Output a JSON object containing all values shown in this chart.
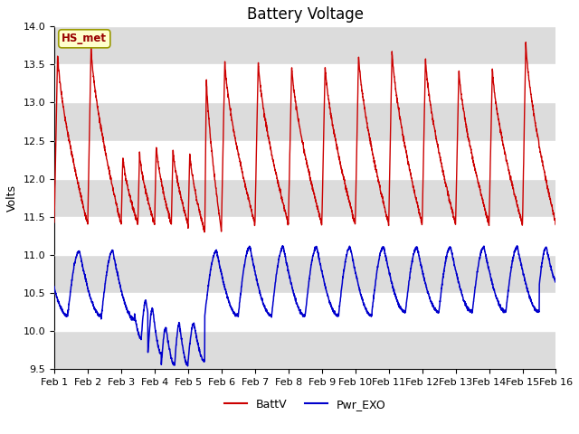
{
  "title": "Battery Voltage",
  "ylabel": "Volts",
  "ylim": [
    9.5,
    14.0
  ],
  "xlim": [
    0,
    15
  ],
  "xtick_labels": [
    "Feb 1",
    "Feb 2",
    "Feb 3",
    "Feb 4",
    "Feb 5",
    "Feb 6",
    "Feb 7",
    "Feb 8",
    "Feb 9",
    "Feb 10",
    "Feb 11",
    "Feb 12",
    "Feb 13",
    "Feb 14",
    "Feb 15",
    "Feb 16"
  ],
  "ytick_values": [
    9.5,
    10.0,
    10.5,
    11.0,
    11.5,
    12.0,
    12.5,
    13.0,
    13.5,
    14.0
  ],
  "legend_label1": "BattV",
  "legend_label2": "Pwr_EXO",
  "color1": "#CC0000",
  "color2": "#0000CC",
  "annotation_text": "HS_met",
  "annotation_facecolor": "#FFFFCC",
  "annotation_edgecolor": "#999900",
  "bg_stripe_color": "#DCDCDC",
  "title_fontsize": 12,
  "axis_label_fontsize": 9,
  "tick_label_fontsize": 8
}
